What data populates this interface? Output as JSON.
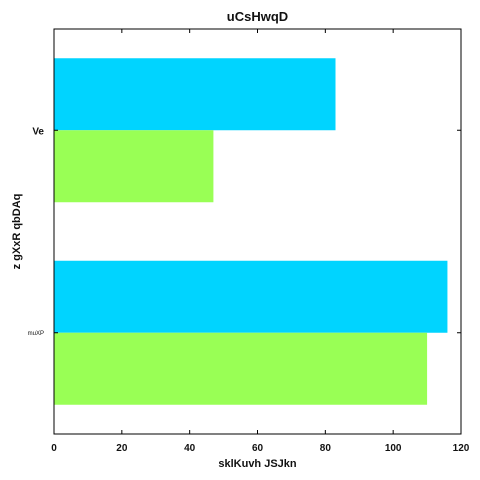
{
  "chart_data": {
    "type": "bar",
    "orientation": "horizontal",
    "title": "uCsHwqD",
    "xlabel": "sklKuvh  JSJkn",
    "ylabel": "z gXxR qbDAq",
    "categories": [
      "Ve",
      "muXP"
    ],
    "series": [
      {
        "values": [
          83,
          116
        ],
        "color": "#00d4ff"
      },
      {
        "values": [
          47,
          110
        ],
        "color": "#99ff55"
      }
    ],
    "xlim": [
      0,
      120
    ],
    "xticks": [
      0,
      20,
      40,
      60,
      80,
      100,
      120
    ],
    "grid": false,
    "legend": "none"
  }
}
